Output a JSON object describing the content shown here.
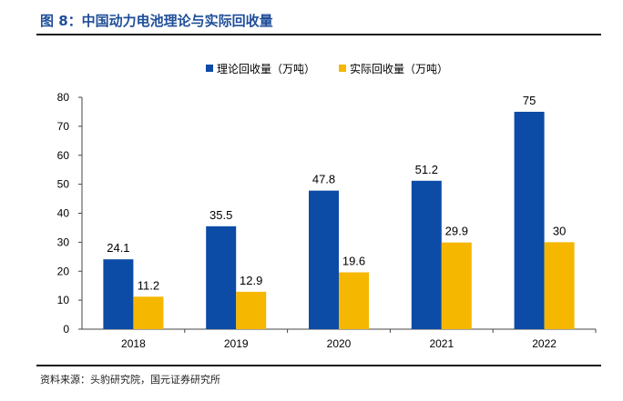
{
  "figure": {
    "title": "图 8：中国动力电池理论与实际回收量",
    "source": "资料来源：头豹研究院，国元证券研究所"
  },
  "colors": {
    "series_0": "#0c4ba6",
    "series_1": "#f5b700"
  },
  "chart_data": {
    "type": "bar",
    "title": "中国动力电池理论与实际回收量",
    "categories": [
      "2018",
      "2019",
      "2020",
      "2021",
      "2022"
    ],
    "series": [
      {
        "name": "理论回收量（万吨）",
        "values": [
          24.1,
          35.5,
          47.8,
          51.2,
          75
        ]
      },
      {
        "name": "实际回收量（万吨）",
        "values": [
          11.2,
          12.9,
          19.6,
          29.9,
          30
        ]
      }
    ],
    "data_labels": [
      [
        "24.1",
        "35.5",
        "47.8",
        "51.2",
        "75"
      ],
      [
        "11.2",
        "12.9",
        "19.6",
        "29.9",
        "30"
      ]
    ],
    "y_ticks": [
      "0",
      "10",
      "20",
      "30",
      "40",
      "50",
      "60",
      "70",
      "80"
    ],
    "ylim": [
      0,
      80
    ],
    "grid": false,
    "legend_position": "top-center"
  }
}
